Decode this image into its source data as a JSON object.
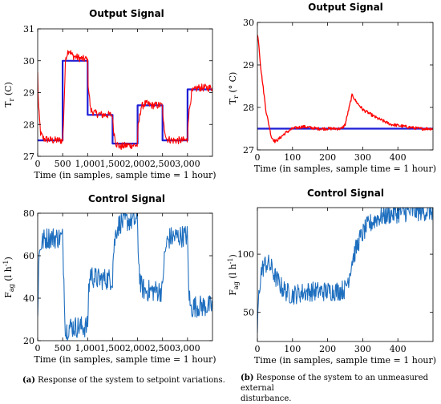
{
  "chart_data": [
    {
      "type": "line",
      "title": "Output Signal",
      "xlabel": "Time (in samples, sample time = 1 hour)",
      "ylabel": "T_r (C)",
      "xlim": [
        0,
        3500
      ],
      "ylim": [
        27,
        31
      ],
      "xticks": [
        0,
        500,
        1000,
        1500,
        2000,
        2500,
        3000
      ],
      "xticklabels": [
        "0",
        "500",
        "1,000",
        "1,500",
        "2,000",
        "2,500",
        "3,000"
      ],
      "yticks": [
        27,
        28,
        29,
        30,
        31
      ],
      "yticklabels": [
        "27",
        "28",
        "29",
        "30",
        "31"
      ],
      "series": [
        {
          "color": "#1f1fd6",
          "step": true,
          "x": [
            0,
            500,
            1000,
            1500,
            2000,
            2500,
            3000,
            3500
          ],
          "y": [
            27.5,
            30.0,
            28.3,
            27.4,
            28.6,
            27.5,
            29.1,
            29.1
          ]
        },
        {
          "color": "#ff0000",
          "noise": 0.12,
          "x": [
            0,
            15,
            60,
            120,
            300,
            500,
            515,
            560,
            620,
            700,
            900,
            1000,
            1010,
            1060,
            1150,
            1300,
            1500,
            1510,
            1570,
            1650,
            1800,
            2000,
            2010,
            2070,
            2150,
            2300,
            2500,
            2510,
            2580,
            2700,
            2900,
            3000,
            3010,
            3080,
            3200,
            3500
          ],
          "y": [
            29.6,
            28.6,
            27.7,
            27.55,
            27.5,
            27.5,
            28.0,
            30.1,
            30.35,
            30.15,
            30.05,
            30.05,
            29.3,
            28.45,
            28.35,
            28.3,
            28.3,
            27.9,
            27.4,
            27.3,
            27.35,
            27.35,
            27.9,
            28.55,
            28.65,
            28.6,
            28.6,
            28.1,
            27.55,
            27.5,
            27.5,
            27.5,
            28.1,
            29.0,
            29.15,
            29.15
          ]
        }
      ]
    },
    {
      "type": "line",
      "title": "Output Signal",
      "xlabel": "Time (in samples, sample time = 1 hour)",
      "ylabel": "T_r (° C)",
      "xlim": [
        0,
        500
      ],
      "ylim": [
        27,
        30
      ],
      "xticks": [
        0,
        100,
        200,
        300,
        400
      ],
      "xticklabels": [
        "0",
        "100",
        "200",
        "300",
        "400"
      ],
      "yticks": [
        27,
        28,
        29,
        30
      ],
      "yticklabels": [
        "27",
        "28",
        "29",
        "30"
      ],
      "series": [
        {
          "color": "#1f1fd6",
          "step": false,
          "x": [
            0,
            500
          ],
          "y": [
            27.5,
            27.5
          ]
        },
        {
          "color": "#ff0000",
          "noise": 0.06,
          "x": [
            0,
            3,
            10,
            25,
            40,
            50,
            60,
            80,
            100,
            130,
            170,
            200,
            240,
            250,
            260,
            270,
            280,
            300,
            340,
            380,
            420,
            460,
            500
          ],
          "y": [
            29.7,
            29.6,
            28.9,
            27.9,
            27.3,
            27.2,
            27.25,
            27.4,
            27.5,
            27.55,
            27.5,
            27.5,
            27.5,
            27.6,
            27.95,
            28.3,
            28.15,
            27.95,
            27.75,
            27.6,
            27.55,
            27.5,
            27.5
          ]
        }
      ]
    },
    {
      "type": "line",
      "title": "Control Signal",
      "xlabel": "Time (in samples, sample time = 1 hour)",
      "ylabel": "F_ag (l h^-1)",
      "xlim": [
        0,
        3500
      ],
      "ylim": [
        20,
        80
      ],
      "xticks": [
        0,
        500,
        1000,
        1500,
        2000,
        2500,
        3000
      ],
      "xticklabels": [
        "0",
        "500",
        "1,000",
        "1,500",
        "2,000",
        "2,500",
        "3,000"
      ],
      "yticks": [
        20,
        40,
        60,
        80
      ],
      "yticklabels": [
        "20",
        "40",
        "60",
        "80"
      ],
      "series": [
        {
          "color": "#1f6fbf",
          "noise": 0.35,
          "x": [
            0,
            20,
            60,
            120,
            200,
            300,
            500,
            510,
            560,
            580,
            620,
            700,
            900,
            1000,
            1020,
            1060,
            1100,
            1200,
            1500,
            1510,
            1570,
            1650,
            1800,
            2000,
            2020,
            2060,
            2150,
            2300,
            2500,
            2520,
            2580,
            2650,
            2800,
            3000,
            3020,
            3060,
            3150,
            3500
          ],
          "y": [
            31,
            58,
            65,
            67.5,
            68.5,
            68.5,
            68.5,
            60,
            22,
            25,
            26.5,
            26.5,
            26.5,
            26.5,
            44,
            52,
            50,
            49,
            49,
            60,
            72,
            75.5,
            76.5,
            76.5,
            58,
            46,
            43.5,
            43.5,
            43.5,
            55,
            66,
            68.5,
            69,
            69.5,
            46,
            35,
            36.2,
            36.2
          ]
        }
      ]
    },
    {
      "type": "line",
      "title": "Control Signal",
      "xlabel": "Time (in samples, sample time = 1 hour)",
      "ylabel": "F_ag (l h^-1)",
      "xlim": [
        0,
        500
      ],
      "ylim": [
        25,
        140
      ],
      "xticks": [
        0,
        100,
        200,
        300,
        400
      ],
      "xticklabels": [
        "0",
        "100",
        "200",
        "300",
        "400"
      ],
      "yticks": [
        50,
        100
      ],
      "yticklabels": [
        "50",
        "100"
      ],
      "series": [
        {
          "color": "#1f6fbf",
          "noise": 0.3,
          "x": [
            0,
            3,
            10,
            20,
            30,
            40,
            50,
            70,
            90,
            100,
            120,
            150,
            200,
            230,
            250,
            260,
            270,
            290,
            310,
            340,
            380,
            420,
            460,
            500
          ],
          "y": [
            32,
            60,
            84,
            91,
            92,
            88,
            81,
            71,
            66,
            65,
            66.5,
            68,
            68,
            68.5,
            70,
            80,
            95,
            112,
            123,
            131,
            134.5,
            136,
            136.8,
            137
          ]
        }
      ]
    }
  ],
  "captions": {
    "a_tag": "(a)",
    "a_text": "Response of the system to setpoint variations.",
    "b_tag": "(b)",
    "b_text_line1": "Response of the system to an unmeasured external",
    "b_text_line2": "disturbance."
  }
}
